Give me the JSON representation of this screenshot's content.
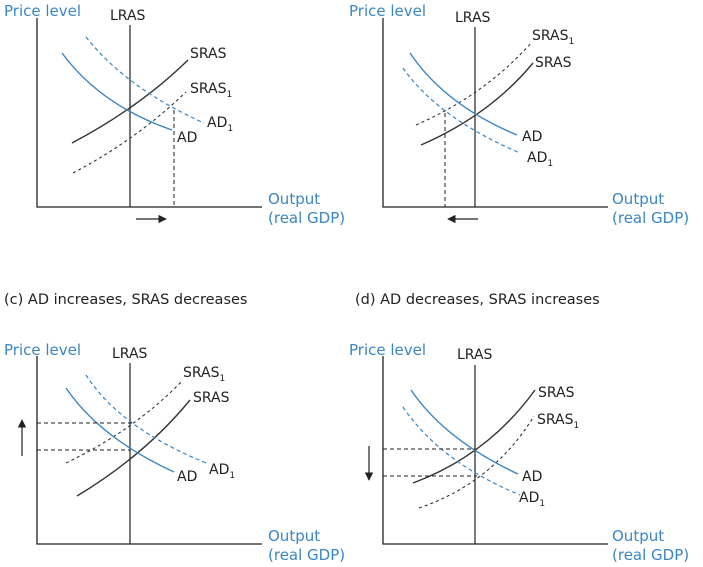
{
  "labels": {
    "price_level": "Price level",
    "lras": "LRAS",
    "sras": "SRAS",
    "sras1": "SRAS",
    "ad": "AD",
    "ad1": "AD",
    "subscript": "1",
    "output": "Output",
    "real_gdp": "(real GDP)"
  },
  "captions": {
    "c": "(c) AD increases, SRAS decreases",
    "d": "(d) AD decreases, SRAS increases"
  },
  "colors": {
    "axis": "#222222",
    "ad_curve": "#3b86c4",
    "label_blue": "#3b86c4"
  },
  "panels": [
    {
      "id": "a",
      "change": "output increases"
    },
    {
      "id": "b",
      "change": "output decreases"
    },
    {
      "id": "c",
      "change": "price level increases"
    },
    {
      "id": "d",
      "change": "price level decreases"
    }
  ]
}
